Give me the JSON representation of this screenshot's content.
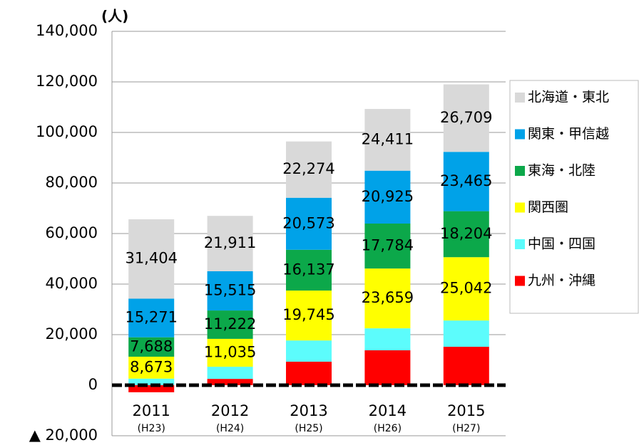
{
  "chart_data": {
    "type": "stacked-bar",
    "y_label": "(人)",
    "categories": [
      "2011",
      "2012",
      "2013",
      "2014",
      "2015"
    ],
    "category_sublabels": [
      "(H23)",
      "(H24)",
      "(H25)",
      "(H26)",
      "(H27)"
    ],
    "series": [
      {
        "name": "九州・沖縄",
        "color": "#ff0000",
        "values": [
          -2800,
          2500,
          9300,
          13800,
          15200
        ]
      },
      {
        "name": "中国・四国",
        "color": "#5cfcfc",
        "values": [
          2600,
          4800,
          8400,
          8700,
          10400
        ]
      },
      {
        "name": "関西圏",
        "color": "#ffff00",
        "values": [
          8673,
          11035,
          19745,
          23659,
          25042
        ],
        "value_labels": [
          "8,673",
          "11,035",
          "19,745",
          "23,659",
          "25,042"
        ]
      },
      {
        "name": "東海・北陸",
        "color": "#0ca84a",
        "values": [
          7688,
          11222,
          16137,
          17784,
          18204
        ],
        "value_labels": [
          "7,688",
          "11,222",
          "16,137",
          "17,784",
          "18,204"
        ]
      },
      {
        "name": "関東・甲信越",
        "color": "#00a2e8",
        "values": [
          15271,
          15515,
          20573,
          20925,
          23465
        ],
        "value_labels": [
          "15,271",
          "15,515",
          "20,573",
          "20,925",
          "23,465"
        ]
      },
      {
        "name": "北海道・東北",
        "color": "#d9d9d9",
        "values": [
          31404,
          21911,
          22274,
          24411,
          26709
        ],
        "value_labels": [
          "31,404",
          "21,911",
          "22,274",
          "24,411",
          "26,709"
        ]
      }
    ],
    "ylim": [
      -20000,
      140000
    ],
    "yticks": [
      {
        "value": -20000,
        "label": "▲ 20,000"
      },
      0,
      {
        "value": 20000,
        "label": "20,000"
      },
      {
        "value": 40000,
        "label": "40,000"
      },
      {
        "value": 60000,
        "label": "60,000"
      },
      {
        "value": 80000,
        "label": "80,000"
      },
      {
        "value": 100000,
        "label": "100,000"
      },
      {
        "value": 120000,
        "label": "120,000"
      },
      {
        "value": 140000,
        "label": "140,000"
      }
    ],
    "grid": true,
    "legend": "right"
  }
}
